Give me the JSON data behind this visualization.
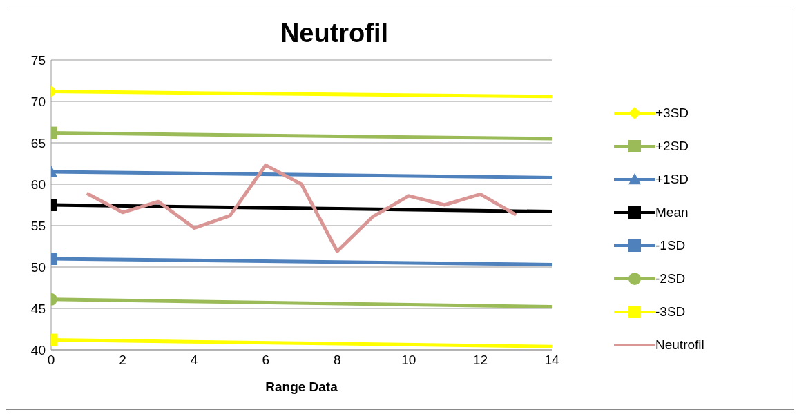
{
  "chart_data": {
    "type": "line",
    "title": "Neutrofil",
    "xlabel": "Range Data",
    "xlim": [
      0,
      14
    ],
    "xticks": [
      0,
      2,
      4,
      6,
      8,
      10,
      12,
      14
    ],
    "ylim": [
      40,
      75
    ],
    "yticks": [
      40,
      45,
      50,
      55,
      60,
      65,
      70,
      75
    ],
    "grid": "y",
    "legend": "right",
    "series": [
      {
        "name": "+3SD",
        "color": "#ffff00",
        "x": [
          0,
          14
        ],
        "values": [
          71.2,
          70.6
        ],
        "marker": "diamond"
      },
      {
        "name": "+2SD",
        "color": "#9bbb59",
        "x": [
          0,
          14
        ],
        "values": [
          66.2,
          65.5
        ],
        "marker": "square"
      },
      {
        "name": "+1SD",
        "color": "#4f81bd",
        "x": [
          0,
          14
        ],
        "values": [
          61.5,
          60.8
        ],
        "marker": "triangle"
      },
      {
        "name": "Mean",
        "color": "#000000",
        "x": [
          0,
          14
        ],
        "values": [
          57.5,
          56.7
        ],
        "marker": "square"
      },
      {
        "name": "-1SD",
        "color": "#4f81bd",
        "x": [
          0,
          14
        ],
        "values": [
          51.0,
          50.3
        ],
        "marker": "square"
      },
      {
        "name": "-2SD",
        "color": "#9bbb59",
        "x": [
          0,
          14
        ],
        "values": [
          46.1,
          45.2
        ],
        "marker": "circle"
      },
      {
        "name": "-3SD",
        "color": "#ffff00",
        "x": [
          0,
          14
        ],
        "values": [
          41.2,
          40.4
        ],
        "marker": "square"
      },
      {
        "name": "Neutrofil",
        "color": "#d99694",
        "x": [
          1,
          2,
          3,
          4,
          5,
          6,
          7,
          8,
          9,
          10,
          11,
          12,
          13
        ],
        "values": [
          58.9,
          56.6,
          57.9,
          54.7,
          56.2,
          62.3,
          60.0,
          51.9,
          56.1,
          58.6,
          57.5,
          58.8,
          56.3
        ],
        "marker": "none"
      }
    ]
  }
}
